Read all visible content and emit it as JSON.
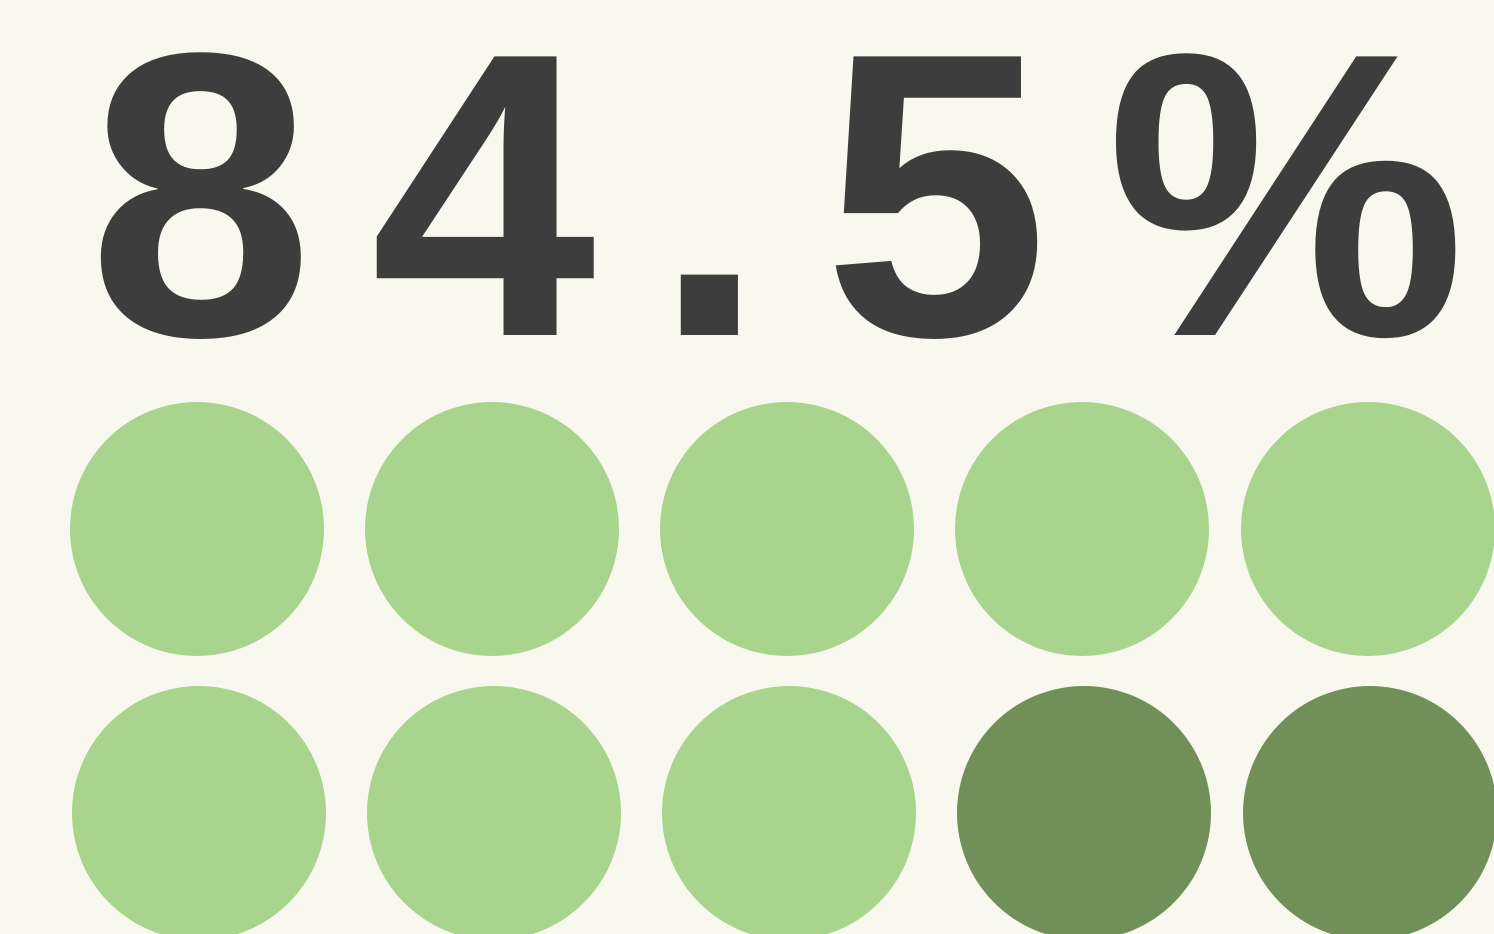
{
  "stat": "84.5%"
}
